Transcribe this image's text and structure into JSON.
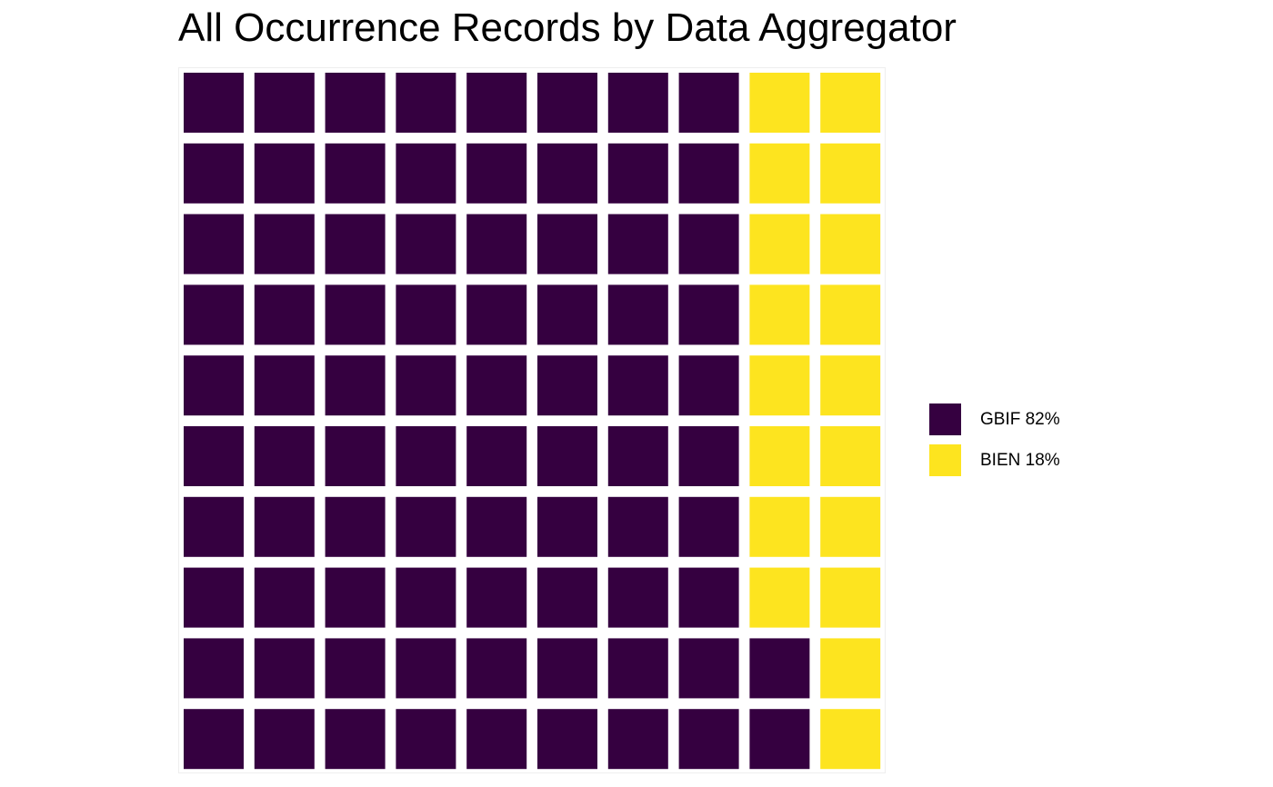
{
  "chart_data": {
    "type": "waffle",
    "title": "All Occurrence Records by Data Aggregator",
    "grid": {
      "rows": 10,
      "columns": 10,
      "fill_order": "column-wise, bottom-to-top, left-to-right"
    },
    "series": [
      {
        "name": "GBIF",
        "label": "GBIF 82%",
        "value": 82,
        "color": "#350040"
      },
      {
        "name": "BIEN",
        "label": "BIEN 18%",
        "value": 18,
        "color": "#FDE41F"
      }
    ],
    "legend": {
      "placement": "right",
      "items": [
        {
          "label": "GBIF 82%",
          "color": "#350040"
        },
        {
          "label": "BIEN 18%",
          "color": "#FDE41F"
        }
      ]
    }
  }
}
